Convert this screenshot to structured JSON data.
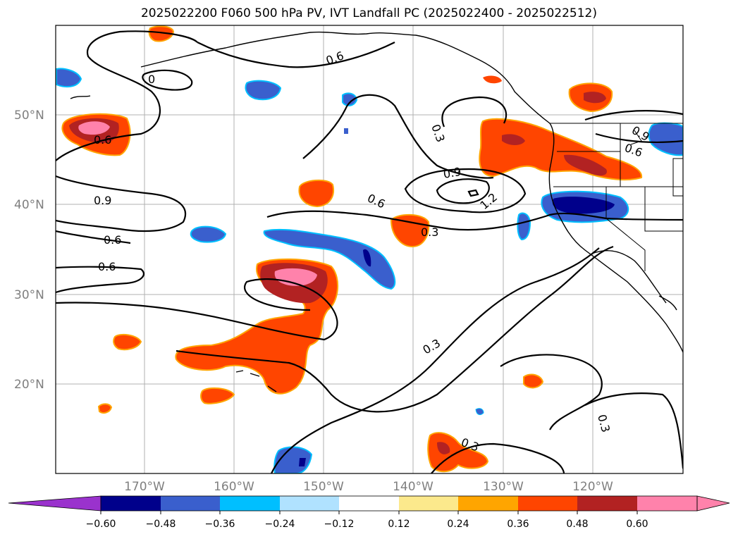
{
  "title": "2025022200 F060 500 hPa PV, IVT Landfall PC (2025022400 - 2025022512)",
  "map": {
    "lat_labels": [
      "50°N",
      "40°N",
      "30°N",
      "20°N"
    ],
    "lon_labels": [
      "170°W",
      "160°W",
      "150°W",
      "140°W",
      "130°W",
      "120°W"
    ],
    "gridlines": true,
    "coastlines": true,
    "state_borders": true
  },
  "contour_labels": [
    "0.6",
    "0",
    "0.6",
    "0.9",
    "0.6",
    "0.6",
    "0.3",
    "0.9",
    "1.2",
    "0.6",
    "0.3",
    "0.6",
    "0.9",
    "0.3",
    "0.3",
    "0.3"
  ],
  "colorbar": {
    "ticks": [
      "−0.60",
      "−0.48",
      "−0.36",
      "−0.24",
      "−0.12",
      "0.12",
      "0.24",
      "0.36",
      "0.48",
      "0.60"
    ],
    "colors": [
      "#9a32cd",
      "#00008b",
      "#3a5fcd",
      "#00bfff",
      "#b0e2ff",
      "#ffffff",
      "#fce98c",
      "#ffa500",
      "#ff4500",
      "#b22222",
      "#ff82ab"
    ],
    "extend": "both"
  }
}
